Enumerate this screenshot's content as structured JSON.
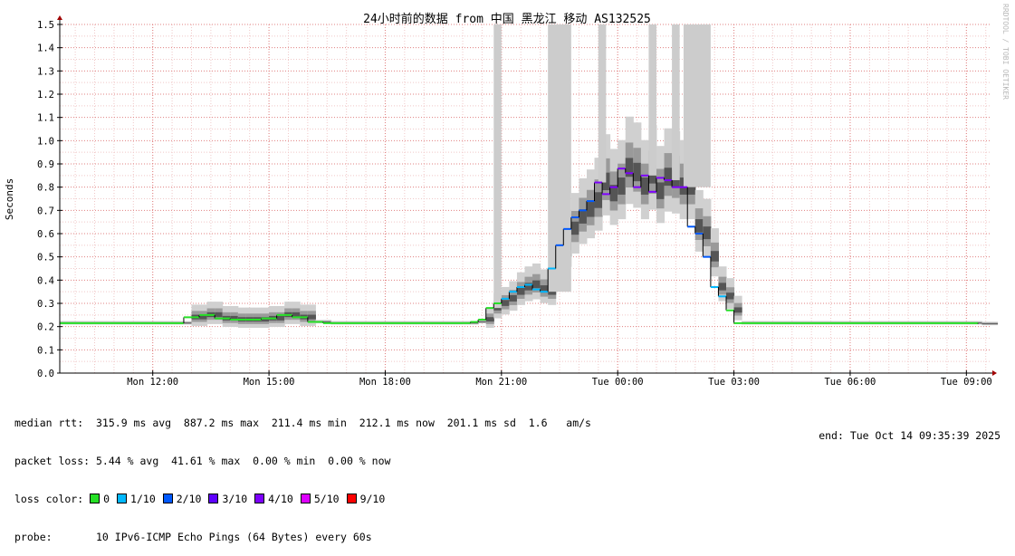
{
  "chart_data": {
    "type": "line",
    "title": "24小时前的数据 from 中国 黑龙江 移动 AS132525",
    "ylabel": "Seconds",
    "watermark": "RRDTOOL / TOBI OETIKER",
    "ylim": [
      0,
      1.5
    ],
    "yticks": [
      "0.0",
      "0.1",
      "0.2",
      "0.3",
      "0.4",
      "0.5",
      "0.6",
      "0.7",
      "0.8",
      "0.9",
      "1.0",
      "1.1",
      "1.2",
      "1.3",
      "1.4",
      "1.5"
    ],
    "x_range_hours": [
      9.6,
      33.6
    ],
    "xticks": [
      {
        "label": "Mon 12:00",
        "h": 12
      },
      {
        "label": "Mon 15:00",
        "h": 15
      },
      {
        "label": "Mon 18:00",
        "h": 18
      },
      {
        "label": "Mon 21:00",
        "h": 21
      },
      {
        "label": "Tue 00:00",
        "h": 24
      },
      {
        "label": "Tue 03:00",
        "h": 27
      },
      {
        "label": "Tue 06:00",
        "h": 30
      },
      {
        "label": "Tue 09:00",
        "h": 33
      }
    ],
    "grid": true,
    "median_series": [
      [
        9.6,
        0.215
      ],
      [
        12.4,
        0.215
      ],
      [
        12.8,
        0.24
      ],
      [
        13.2,
        0.25
      ],
      [
        13.6,
        0.235
      ],
      [
        14.0,
        0.23
      ],
      [
        14.4,
        0.23
      ],
      [
        14.8,
        0.235
      ],
      [
        15.2,
        0.25
      ],
      [
        15.6,
        0.24
      ],
      [
        16.0,
        0.22
      ],
      [
        16.4,
        0.215
      ],
      [
        19.0,
        0.215
      ],
      [
        20.0,
        0.215
      ],
      [
        20.2,
        0.22
      ],
      [
        20.4,
        0.23
      ],
      [
        20.6,
        0.28
      ],
      [
        20.8,
        0.3
      ],
      [
        21.0,
        0.32
      ],
      [
        21.2,
        0.35
      ],
      [
        21.4,
        0.37
      ],
      [
        21.6,
        0.38
      ],
      [
        21.8,
        0.36
      ],
      [
        22.0,
        0.35
      ],
      [
        22.2,
        0.45
      ],
      [
        22.4,
        0.55
      ],
      [
        22.6,
        0.62
      ],
      [
        22.8,
        0.67
      ],
      [
        23.0,
        0.7
      ],
      [
        23.2,
        0.74
      ],
      [
        23.4,
        0.82
      ],
      [
        23.6,
        0.77
      ],
      [
        23.8,
        0.8
      ],
      [
        24.0,
        0.88
      ],
      [
        24.2,
        0.86
      ],
      [
        24.4,
        0.8
      ],
      [
        24.6,
        0.85
      ],
      [
        24.8,
        0.78
      ],
      [
        25.0,
        0.84
      ],
      [
        25.2,
        0.83
      ],
      [
        25.4,
        0.8
      ],
      [
        25.6,
        0.8
      ],
      [
        25.8,
        0.63
      ],
      [
        26.0,
        0.6
      ],
      [
        26.2,
        0.5
      ],
      [
        26.4,
        0.37
      ],
      [
        26.6,
        0.33
      ],
      [
        26.8,
        0.27
      ],
      [
        27.0,
        0.215
      ],
      [
        33.3,
        0.212
      ]
    ],
    "spike_windows_h": [
      [
        20.8,
        21.0
      ],
      [
        22.2,
        22.8
      ],
      [
        23.5,
        23.7
      ],
      [
        24.8,
        25.0
      ],
      [
        25.4,
        25.6
      ],
      [
        25.7,
        26.4
      ]
    ]
  },
  "stats": {
    "median_rtt": "median rtt:  315.9 ms avg  887.2 ms max  211.4 ms min  212.1 ms now  201.1 ms sd  1.6   am/s",
    "packet_loss": "packet loss: 5.44 % avg  41.61 % max  0.00 % min  0.00 % now",
    "loss_color_label": "loss color:",
    "loss_colors": [
      {
        "label": "0",
        "color": "#26e026"
      },
      {
        "label": "1/10",
        "color": "#00b8ff"
      },
      {
        "label": "2/10",
        "color": "#0059ff"
      },
      {
        "label": "3/10",
        "color": "#5e00ff"
      },
      {
        "label": "4/10",
        "color": "#7e00ff"
      },
      {
        "label": "5/10",
        "color": "#dd00ff"
      },
      {
        "label": "9/10",
        "color": "#ff0000"
      }
    ],
    "probe": "probe:       10 IPv6-ICMP Echo Pings (64 Bytes) every 60s",
    "end": "end: Tue Oct 14 09:35:39 2025"
  }
}
